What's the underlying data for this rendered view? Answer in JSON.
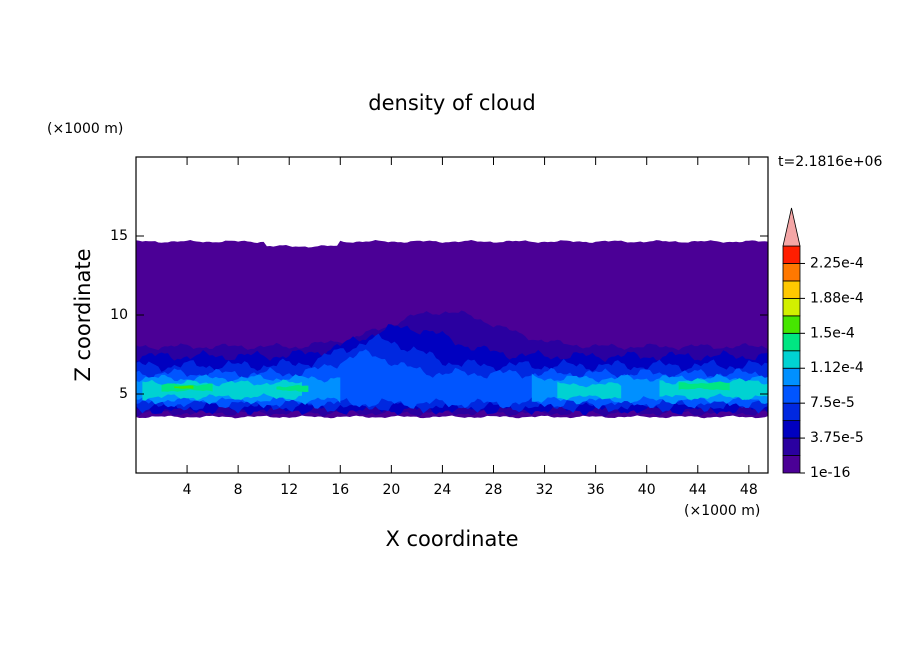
{
  "chart_data": {
    "type": "contour",
    "title": "density of cloud",
    "time_label": "t=2.1816e+06",
    "x_label": "X coordinate",
    "y_label": "Z coordinate",
    "x_unit": "(×1000 m)",
    "y_unit": "(×1000 m)",
    "xlim": [
      0,
      49.5
    ],
    "ylim": [
      0,
      20
    ],
    "xticks": [
      4,
      8,
      12,
      16,
      20,
      24,
      28,
      32,
      36,
      40,
      44,
      48
    ],
    "yticks": [
      5,
      10,
      15
    ],
    "clim": [
      1e-16,
      0.00024375
    ],
    "cticks": [
      {
        "value": 1e-16,
        "label": "1e-16"
      },
      {
        "value": 3.75e-05,
        "label": "3.75e-5"
      },
      {
        "value": 7.5e-05,
        "label": "7.5e-5"
      },
      {
        "value": 0.0001125,
        "label": "1.12e-4"
      },
      {
        "value": 0.00015,
        "label": "1.5e-4"
      },
      {
        "value": 0.0001875,
        "label": "1.88e-4"
      },
      {
        "value": 0.000225,
        "label": "2.25e-4"
      }
    ],
    "colors": [
      "#4b0096",
      "#2a00a0",
      "#0000c0",
      "#0028e0",
      "#0055ff",
      "#0090ff",
      "#00d2d2",
      "#00e682",
      "#46e600",
      "#d2f000",
      "#ffc800",
      "#ff7800",
      "#ff1e00"
    ],
    "extend_color": "#f4a6a6"
  }
}
